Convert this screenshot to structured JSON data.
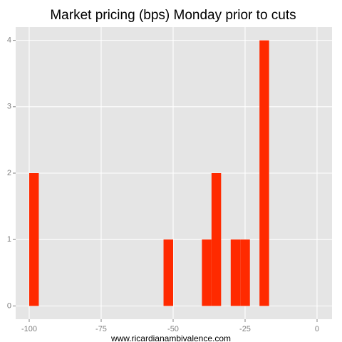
{
  "chart_data": {
    "type": "histogram",
    "title": "Market pricing (bps) Monday prior to cuts",
    "x_label": "www.ricardianambivalence.com",
    "bins": [
      -100,
      -96.667,
      -93.333,
      -90,
      -86.667,
      -83.333,
      -80,
      -76.667,
      -73.333,
      -70,
      -66.667,
      -63.333,
      -60,
      -56.667,
      -53.333,
      -50,
      -46.667,
      -43.333,
      -40,
      -36.667,
      -33.333,
      -30,
      -26.667,
      -23.333,
      -20,
      -16.667
    ],
    "values": [
      2,
      0,
      0,
      0,
      0,
      0,
      0,
      0,
      0,
      0,
      0,
      0,
      0,
      0,
      1,
      0,
      0,
      0,
      1,
      2,
      0,
      1,
      1,
      0,
      4
    ],
    "color": "#ff2a00",
    "xlim": [
      -104.7,
      5.2
    ],
    "xticks": [
      -100,
      -75,
      -50,
      -25,
      0
    ],
    "ylim": [
      -0.2,
      4.2
    ],
    "yticks": [
      0,
      1,
      2,
      3,
      4
    ],
    "grid": true
  }
}
